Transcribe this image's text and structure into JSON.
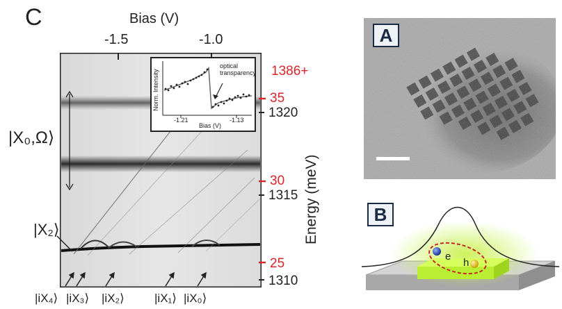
{
  "figure": {
    "panel_c": {
      "label": "C",
      "top_axis_title": "Bias (V)",
      "top_ticks": [
        "-1.5",
        "-1.0"
      ],
      "right_axis_title": "Energy (meV)",
      "energy_offset_label": "1386+",
      "red_ticks": [
        "35",
        "30",
        "25"
      ],
      "black_ticks": [
        "1320",
        "1315",
        "1310"
      ],
      "state_labels": {
        "x0_omega": "|X₀,Ω⟩",
        "x2": "|X₂⟩"
      },
      "bottom_labels": [
        "|iX₄⟩",
        "|iX₃⟩",
        "|iX₂⟩",
        "|iX₁⟩",
        "|iX₀⟩"
      ],
      "inset": {
        "y_label": "Norm. Intensity",
        "x_label": "Bias (V)",
        "x_ticks": [
          "-1.21",
          "-1.13"
        ],
        "annotation": "optical\ntransparency"
      }
    },
    "panel_a": {
      "label": "A"
    },
    "panel_b": {
      "label": "B",
      "electron": "e",
      "hole": "h"
    },
    "colors": {
      "red_ticks": "#d8262a",
      "dark_band": "#2a2a2a",
      "platform": "#b9ee32",
      "panel_border": "#1b2a44"
    }
  }
}
